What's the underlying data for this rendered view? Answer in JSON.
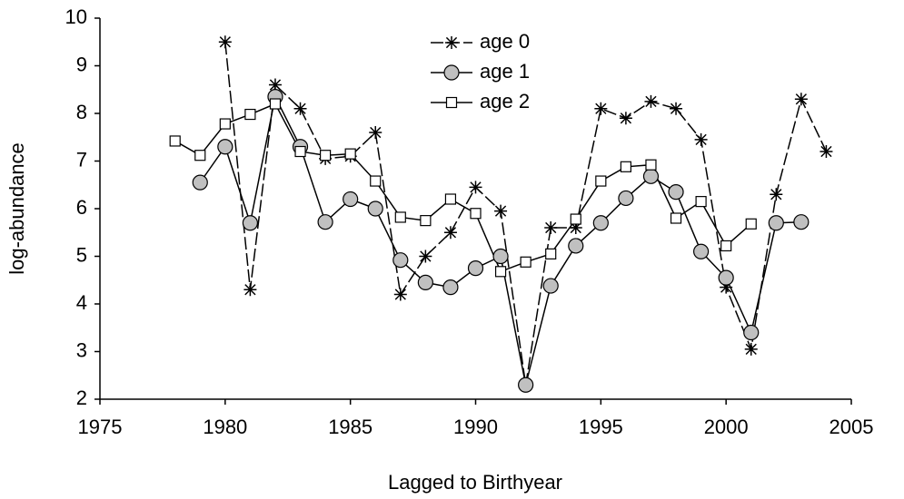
{
  "chart_data": {
    "type": "line",
    "x_label": "Lagged to Birthyear",
    "y_label": "log-abundance",
    "x": [
      1978,
      1979,
      1980,
      1981,
      1982,
      1983,
      1984,
      1985,
      1986,
      1987,
      1988,
      1989,
      1990,
      1991,
      1992,
      1993,
      1994,
      1995,
      1996,
      1997,
      1998,
      1999,
      2000,
      2001,
      2002,
      2003,
      2004
    ],
    "series": [
      {
        "name": "age 0",
        "color": "#000000",
        "marker": "asterisk",
        "dashed": true,
        "values": [
          null,
          null,
          9.5,
          4.3,
          8.6,
          8.1,
          7.05,
          7.1,
          7.6,
          4.2,
          5.0,
          5.5,
          6.45,
          5.95,
          2.3,
          5.6,
          5.6,
          8.1,
          7.9,
          8.25,
          8.1,
          7.45,
          4.35,
          3.05,
          6.3,
          8.3,
          7.2
        ]
      },
      {
        "name": "age 1",
        "color": "#000000",
        "marker": "circle",
        "dashed": false,
        "values": [
          null,
          6.55,
          7.3,
          5.7,
          8.35,
          7.3,
          5.72,
          6.2,
          6.0,
          4.92,
          4.45,
          4.35,
          4.75,
          5.0,
          2.3,
          4.38,
          5.22,
          5.7,
          6.22,
          6.68,
          6.35,
          5.1,
          4.55,
          3.4,
          5.7,
          5.72,
          null
        ]
      },
      {
        "name": "age 2",
        "color": "#000000",
        "marker": "square",
        "dashed": false,
        "values": [
          7.42,
          7.12,
          7.78,
          7.98,
          8.2,
          7.2,
          7.12,
          7.15,
          6.58,
          5.82,
          5.75,
          6.2,
          5.9,
          4.68,
          4.88,
          5.05,
          5.78,
          6.58,
          6.88,
          6.92,
          5.8,
          6.15,
          5.22,
          5.68,
          null,
          null,
          null
        ]
      }
    ],
    "xlim": [
      1975,
      2005
    ],
    "xticks": [
      1975,
      1980,
      1985,
      1990,
      1995,
      2000,
      2005
    ],
    "ylim": [
      2,
      10
    ],
    "yticks": [
      2,
      3,
      4,
      5,
      6,
      7,
      8,
      9,
      10
    ],
    "grid": false,
    "legend": "top"
  }
}
